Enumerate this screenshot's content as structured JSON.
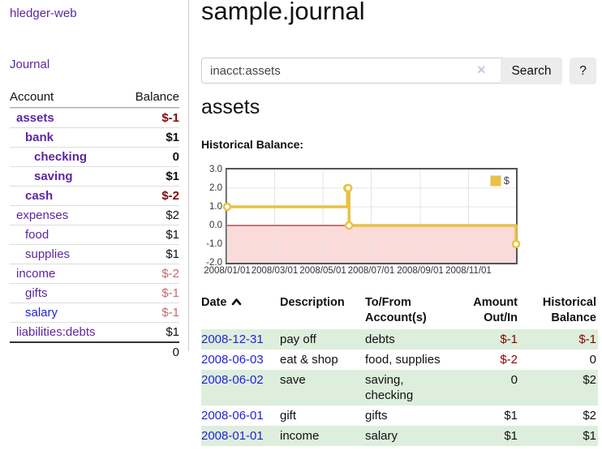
{
  "app": {
    "title": "hledger-web"
  },
  "sidebar": {
    "journal_link": "Journal",
    "accounts_header": {
      "account": "Account",
      "balance": "Balance"
    },
    "accounts": [
      {
        "name": "assets",
        "balance": "$-1"
      },
      {
        "name": "bank",
        "balance": "$1"
      },
      {
        "name": "checking",
        "balance": "0"
      },
      {
        "name": "saving",
        "balance": "$1"
      },
      {
        "name": "cash",
        "balance": "$-2"
      },
      {
        "name": "expenses",
        "balance": "$2"
      },
      {
        "name": "food",
        "balance": "$1"
      },
      {
        "name": "supplies",
        "balance": "$1"
      },
      {
        "name": "income",
        "balance": "$-2"
      },
      {
        "name": "gifts",
        "balance": "$-1"
      },
      {
        "name": "salary",
        "balance": "$-1"
      },
      {
        "name": "liabilities:debts",
        "balance": "$1"
      }
    ],
    "total": "0"
  },
  "header": {
    "title": "sample.journal"
  },
  "search": {
    "value": "inacct:assets",
    "clear_icon": "×",
    "button_label": "Search",
    "help_label": "?"
  },
  "account_page": {
    "title": "assets",
    "chart_label": "Historical Balance:"
  },
  "colors": {
    "link_purple": "#5c26a2",
    "link_blue": "#2222dd",
    "negative_strong": "#7f0b0b",
    "negative_muted": "#c46a6a",
    "stripe_green": "#ddeedd",
    "chart_line": "#e9c143",
    "chart_negative_region": "#fbdada",
    "zero_line": "#8b0000"
  },
  "chart_data": {
    "type": "line",
    "step": true,
    "title": "Historical Balance:",
    "x_range": [
      "2008-01-01",
      "2008-12-31"
    ],
    "ylim": [
      -2,
      3
    ],
    "yticks": [
      "3.0",
      "2.0",
      "1.0",
      "0.0",
      "-1.0",
      "-2.0"
    ],
    "xticks": [
      "2008/01/01",
      "2008/03/01",
      "2008/05/01",
      "2008/07/01",
      "2008/09/01",
      "2008/11/01"
    ],
    "grid": true,
    "legend": {
      "label": "$",
      "position": "top-right"
    },
    "series": [
      {
        "name": "$",
        "color": "#e9c143",
        "points": [
          [
            "2008-01-01",
            1
          ],
          [
            "2008-06-01",
            2
          ],
          [
            "2008-06-02",
            2
          ],
          [
            "2008-06-03",
            0
          ],
          [
            "2008-12-31",
            -1
          ]
        ]
      }
    ]
  },
  "register": {
    "columns": [
      "Date",
      "Description",
      "To/From Account(s)",
      "Amount Out/In",
      "Historical Balance"
    ],
    "sort": {
      "column": "Date",
      "direction": "ascending"
    },
    "rows": [
      {
        "date": "2008-12-31",
        "description": "pay off",
        "accounts": "debts",
        "amount": "$-1",
        "balance": "$-1"
      },
      {
        "date": "2008-06-03",
        "description": "eat & shop",
        "accounts": "food, supplies",
        "amount": "$-2",
        "balance": "0"
      },
      {
        "date": "2008-06-02",
        "description": "save",
        "accounts": "saving, checking",
        "amount": "0",
        "balance": "$2"
      },
      {
        "date": "2008-06-01",
        "description": "gift",
        "accounts": "gifts",
        "amount": "$1",
        "balance": "$2"
      },
      {
        "date": "2008-01-01",
        "description": "income",
        "accounts": "salary",
        "amount": "$1",
        "balance": "$1"
      }
    ]
  }
}
